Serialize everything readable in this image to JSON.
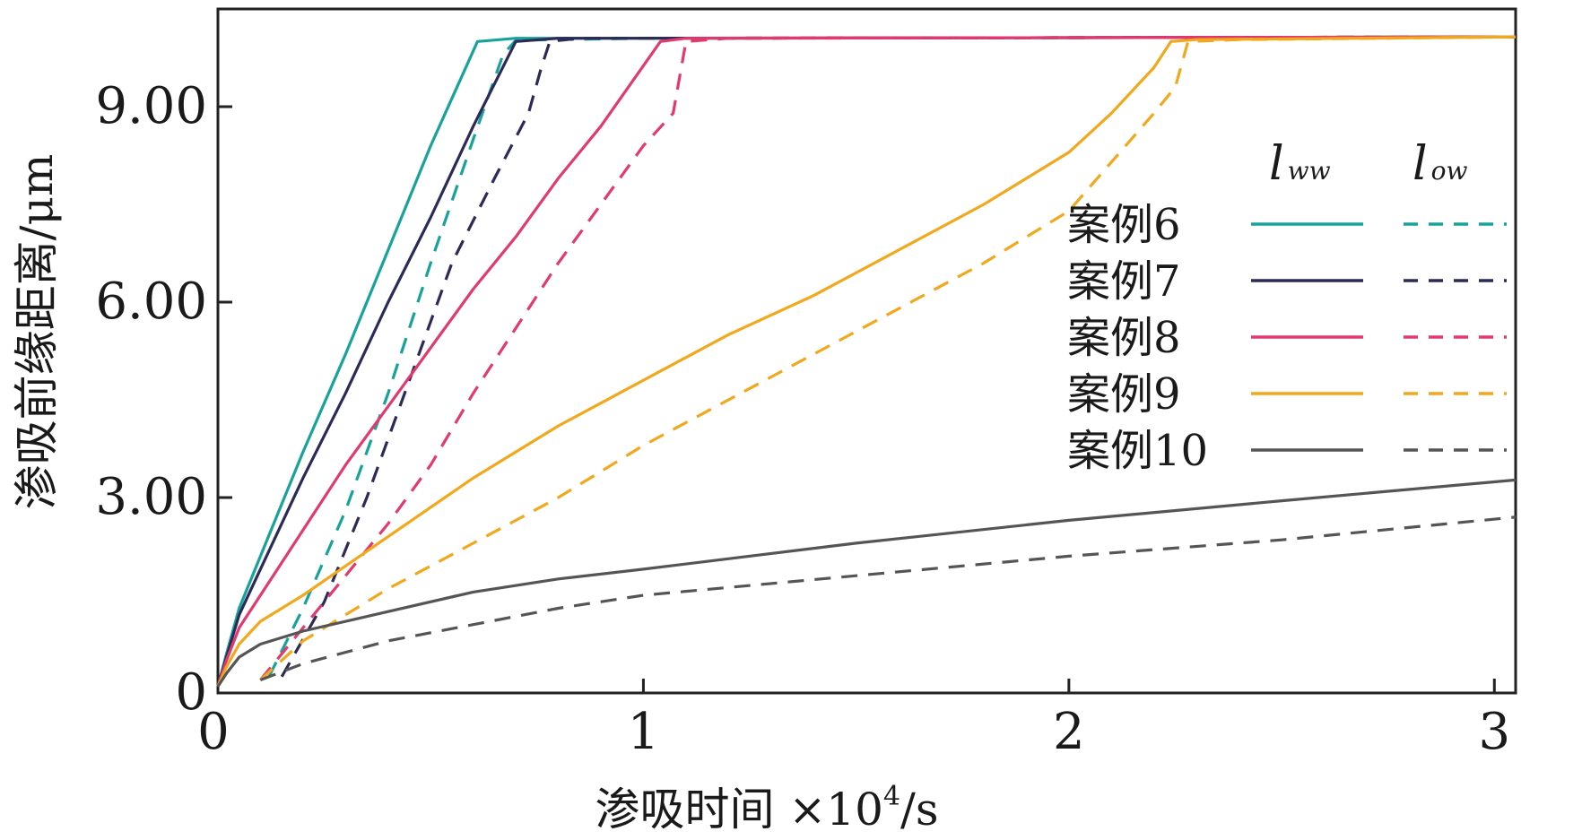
{
  "chart_data": {
    "type": "line",
    "xlabel_main": "渗吸时间 ×10",
    "xlabel_sup": "4",
    "xlabel_unit": "/s",
    "ylabel": "渗吸前缘距离/μm",
    "xlim": [
      0,
      3.05
    ],
    "ylim": [
      0,
      10.5
    ],
    "xticks": [
      0,
      1,
      2,
      3
    ],
    "xtick_labels": [
      "0",
      "1",
      "2",
      "3"
    ],
    "yticks": [
      0,
      3,
      6,
      9
    ],
    "ytick_labels": [
      "0",
      "3.00",
      "6.00",
      "9.00"
    ],
    "legend_position": "right",
    "legend_headers": [
      {
        "main": "l",
        "sub": "ww"
      },
      {
        "main": "l",
        "sub": "ow"
      }
    ],
    "cases": [
      {
        "name": "案例6",
        "color": "#17a39a",
        "ww": [
          [
            0,
            0.1
          ],
          [
            0.02,
            0.6
          ],
          [
            0.05,
            1.3
          ],
          [
            0.1,
            2.1
          ],
          [
            0.2,
            3.7
          ],
          [
            0.3,
            5.2
          ],
          [
            0.4,
            6.8
          ],
          [
            0.5,
            8.4
          ],
          [
            0.61,
            10.0
          ],
          [
            0.7,
            10.05
          ],
          [
            1.0,
            10.05
          ],
          [
            2.0,
            10.06
          ],
          [
            3.05,
            10.07
          ]
        ],
        "ow": [
          [
            0.12,
            0.25
          ],
          [
            0.2,
            1.3
          ],
          [
            0.3,
            2.8
          ],
          [
            0.4,
            4.6
          ],
          [
            0.5,
            6.6
          ],
          [
            0.6,
            8.5
          ],
          [
            0.67,
            9.8
          ],
          [
            0.7,
            10.02
          ],
          [
            1.0,
            10.05
          ],
          [
            2.0,
            10.06
          ],
          [
            3.05,
            10.07
          ]
        ]
      },
      {
        "name": "案例7",
        "color": "#2c2a58",
        "ww": [
          [
            0,
            0.1
          ],
          [
            0.02,
            0.55
          ],
          [
            0.05,
            1.2
          ],
          [
            0.1,
            1.9
          ],
          [
            0.2,
            3.3
          ],
          [
            0.3,
            4.6
          ],
          [
            0.4,
            6.0
          ],
          [
            0.5,
            7.3
          ],
          [
            0.6,
            8.7
          ],
          [
            0.7,
            10.0
          ],
          [
            0.8,
            10.05
          ],
          [
            1.0,
            10.05
          ],
          [
            2.0,
            10.06
          ],
          [
            3.05,
            10.07
          ]
        ],
        "ow": [
          [
            0.15,
            0.25
          ],
          [
            0.25,
            1.4
          ],
          [
            0.35,
            3.0
          ],
          [
            0.45,
            4.8
          ],
          [
            0.55,
            6.6
          ],
          [
            0.65,
            7.9
          ],
          [
            0.73,
            8.9
          ],
          [
            0.76,
            9.6
          ],
          [
            0.78,
            10.0
          ],
          [
            0.85,
            10.05
          ],
          [
            1.0,
            10.05
          ],
          [
            2.0,
            10.06
          ],
          [
            3.05,
            10.07
          ]
        ]
      },
      {
        "name": "案例8",
        "color": "#e23a6e",
        "ww": [
          [
            0,
            0.1
          ],
          [
            0.02,
            0.5
          ],
          [
            0.05,
            1.0
          ],
          [
            0.1,
            1.5
          ],
          [
            0.2,
            2.5
          ],
          [
            0.3,
            3.5
          ],
          [
            0.4,
            4.4
          ],
          [
            0.5,
            5.3
          ],
          [
            0.6,
            6.2
          ],
          [
            0.7,
            7.0
          ],
          [
            0.8,
            7.9
          ],
          [
            0.9,
            8.7
          ],
          [
            1.04,
            10.0
          ],
          [
            1.1,
            10.05
          ],
          [
            2.0,
            10.06
          ],
          [
            3.05,
            10.07
          ]
        ],
        "ow": [
          [
            0.1,
            0.2
          ],
          [
            0.2,
            1.0
          ],
          [
            0.3,
            1.8
          ],
          [
            0.4,
            2.6
          ],
          [
            0.5,
            3.5
          ],
          [
            0.6,
            4.6
          ],
          [
            0.7,
            5.6
          ],
          [
            0.8,
            6.6
          ],
          [
            0.9,
            7.5
          ],
          [
            1.0,
            8.4
          ],
          [
            1.07,
            8.9
          ],
          [
            1.1,
            10.0
          ],
          [
            1.2,
            10.05
          ],
          [
            2.0,
            10.06
          ],
          [
            3.05,
            10.07
          ]
        ]
      },
      {
        "name": "案例9",
        "color": "#f2a81d",
        "ww": [
          [
            0,
            0.1
          ],
          [
            0.02,
            0.4
          ],
          [
            0.05,
            0.75
          ],
          [
            0.1,
            1.1
          ],
          [
            0.2,
            1.5
          ],
          [
            0.4,
            2.4
          ],
          [
            0.6,
            3.3
          ],
          [
            0.8,
            4.1
          ],
          [
            1.0,
            4.8
          ],
          [
            1.2,
            5.5
          ],
          [
            1.4,
            6.1
          ],
          [
            1.6,
            6.8
          ],
          [
            1.8,
            7.5
          ],
          [
            2.0,
            8.3
          ],
          [
            2.1,
            8.9
          ],
          [
            2.2,
            9.6
          ],
          [
            2.24,
            10.0
          ],
          [
            2.3,
            10.03
          ],
          [
            3.05,
            10.07
          ]
        ],
        "ow": [
          [
            0.1,
            0.2
          ],
          [
            0.2,
            0.8
          ],
          [
            0.4,
            1.6
          ],
          [
            0.6,
            2.3
          ],
          [
            0.8,
            3.0
          ],
          [
            1.0,
            3.8
          ],
          [
            1.2,
            4.5
          ],
          [
            1.4,
            5.2
          ],
          [
            1.6,
            5.9
          ],
          [
            1.8,
            6.6
          ],
          [
            2.0,
            7.4
          ],
          [
            2.2,
            8.9
          ],
          [
            2.25,
            9.3
          ],
          [
            2.28,
            10.0
          ],
          [
            2.4,
            10.03
          ],
          [
            3.05,
            10.07
          ]
        ]
      },
      {
        "name": "案例10",
        "color": "#555555",
        "ww": [
          [
            0,
            0.1
          ],
          [
            0.02,
            0.3
          ],
          [
            0.05,
            0.55
          ],
          [
            0.1,
            0.75
          ],
          [
            0.2,
            0.95
          ],
          [
            0.4,
            1.25
          ],
          [
            0.6,
            1.55
          ],
          [
            0.8,
            1.75
          ],
          [
            1.0,
            1.9
          ],
          [
            1.5,
            2.3
          ],
          [
            2.0,
            2.65
          ],
          [
            2.5,
            2.95
          ],
          [
            3.05,
            3.27
          ]
        ],
        "ow": [
          [
            0.1,
            0.2
          ],
          [
            0.2,
            0.45
          ],
          [
            0.4,
            0.8
          ],
          [
            0.6,
            1.05
          ],
          [
            0.8,
            1.3
          ],
          [
            1.0,
            1.5
          ],
          [
            1.5,
            1.8
          ],
          [
            2.0,
            2.1
          ],
          [
            2.5,
            2.35
          ],
          [
            3.05,
            2.7
          ]
        ]
      }
    ]
  }
}
